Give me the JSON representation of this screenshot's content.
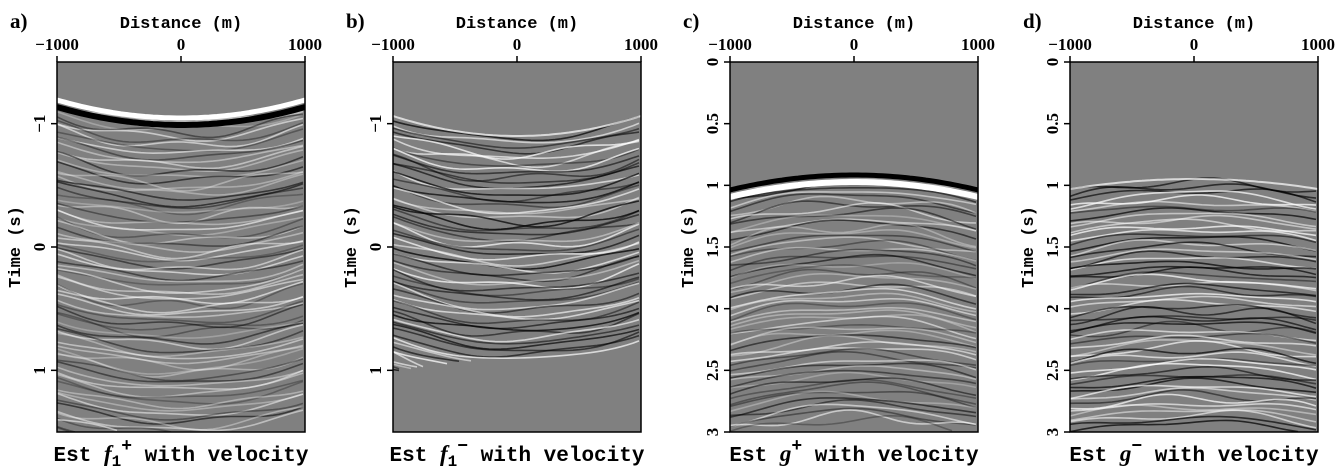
{
  "chart_data": [
    {
      "type": "seismic",
      "panel": "a)",
      "xlabel": "Distance (m)",
      "ylabel": "Time (s)",
      "xlim": [
        -1000,
        1000
      ],
      "xticks": [
        -1000,
        0,
        1000
      ],
      "ylim": [
        -1.5,
        1.5
      ],
      "yticks": [
        -1,
        0,
        1
      ],
      "caption": {
        "pre": "Est ",
        "var": "f",
        "sub": "1",
        "sup": "+",
        "post": " with velocity"
      }
    },
    {
      "type": "seismic",
      "panel": "b)",
      "xlabel": "Distance (m)",
      "ylabel": "Time (s)",
      "xlim": [
        -1000,
        1000
      ],
      "xticks": [
        -1000,
        0,
        1000
      ],
      "ylim": [
        -1.5,
        1.5
      ],
      "yticks": [
        -1,
        0,
        1
      ],
      "caption": {
        "pre": "Est ",
        "var": "f",
        "sub": "1",
        "sup": "−",
        "post": " with velocity"
      }
    },
    {
      "type": "seismic",
      "panel": "c)",
      "xlabel": "Distance (m)",
      "ylabel": "Time (s)",
      "xlim": [
        -1000,
        1000
      ],
      "xticks": [
        -1000,
        0,
        1000
      ],
      "ylim": [
        0,
        3
      ],
      "yticks": [
        0,
        0.5,
        1,
        1.5,
        2,
        2.5,
        3
      ],
      "caption": {
        "pre": "Est ",
        "var": "g",
        "sup": "+",
        "post": " with velocity"
      }
    },
    {
      "type": "seismic",
      "panel": "d)",
      "xlabel": "Distance (m)",
      "ylabel": "Time (s)",
      "xlim": [
        -1000,
        1000
      ],
      "xticks": [
        -1000,
        0,
        1000
      ],
      "ylim": [
        0,
        3
      ],
      "yticks": [
        0,
        0.5,
        1,
        1.5,
        2,
        2.5,
        3
      ],
      "caption": {
        "pre": "Est ",
        "var": "g",
        "sup": "−",
        "post": " with velocity"
      }
    }
  ]
}
